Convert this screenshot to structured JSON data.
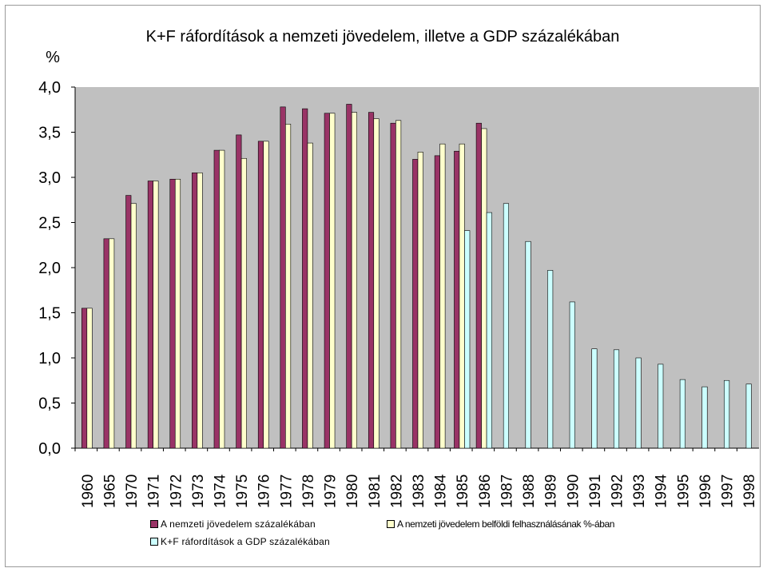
{
  "chart_data": {
    "type": "bar",
    "title": "K+F ráfordítások a nemzeti jövedelem, illetve a GDP százalékában",
    "unit_label": "%",
    "ylim": [
      0,
      4
    ],
    "yticks": [
      "0,0",
      "0,5",
      "1,0",
      "1,5",
      "2,0",
      "2,5",
      "3,0",
      "3,5",
      "4,0"
    ],
    "ytick_values": [
      0,
      0.5,
      1,
      1.5,
      2,
      2.5,
      3,
      3.5,
      4
    ],
    "grid": false,
    "legend_position": "bottom",
    "categories": [
      "1960",
      "1965",
      "1970",
      "1971",
      "1972",
      "1973",
      "1974",
      "1975",
      "1976",
      "1977",
      "1978",
      "1979",
      "1980",
      "1981",
      "1982",
      "1983",
      "1984",
      "1985",
      "1986",
      "1987",
      "1988",
      "1989",
      "1990",
      "1991",
      "1992",
      "1993",
      "1994",
      "1995",
      "1996",
      "1997",
      "1998"
    ],
    "series": [
      {
        "name": "A nemzeti jövedelem százalékában",
        "color": "#993366",
        "values": [
          1.55,
          2.32,
          2.8,
          2.96,
          2.98,
          3.05,
          3.3,
          3.47,
          3.4,
          3.78,
          3.76,
          3.71,
          3.81,
          3.72,
          3.6,
          3.2,
          3.24,
          3.29,
          3.6,
          null,
          null,
          null,
          null,
          null,
          null,
          null,
          null,
          null,
          null,
          null,
          null
        ]
      },
      {
        "name": "A nemzeti jövedelem belföldi felhasználásának %-ában",
        "color": "#ffffcc",
        "values": [
          1.55,
          2.32,
          2.71,
          2.96,
          2.98,
          3.05,
          3.3,
          3.21,
          3.4,
          3.59,
          3.38,
          3.71,
          3.72,
          3.65,
          3.63,
          3.28,
          3.37,
          3.37,
          3.54,
          null,
          null,
          null,
          null,
          null,
          null,
          null,
          null,
          null,
          null,
          null,
          null
        ]
      },
      {
        "name": "K+F ráfordítások a GDP százalékában",
        "color": "#ccffff",
        "values": [
          null,
          null,
          null,
          null,
          null,
          null,
          null,
          null,
          null,
          null,
          null,
          null,
          null,
          null,
          null,
          null,
          null,
          2.41,
          2.61,
          2.71,
          2.29,
          1.97,
          1.62,
          1.1,
          1.09,
          1.0,
          0.93,
          0.76,
          0.68,
          0.75,
          0.71
        ]
      }
    ]
  }
}
